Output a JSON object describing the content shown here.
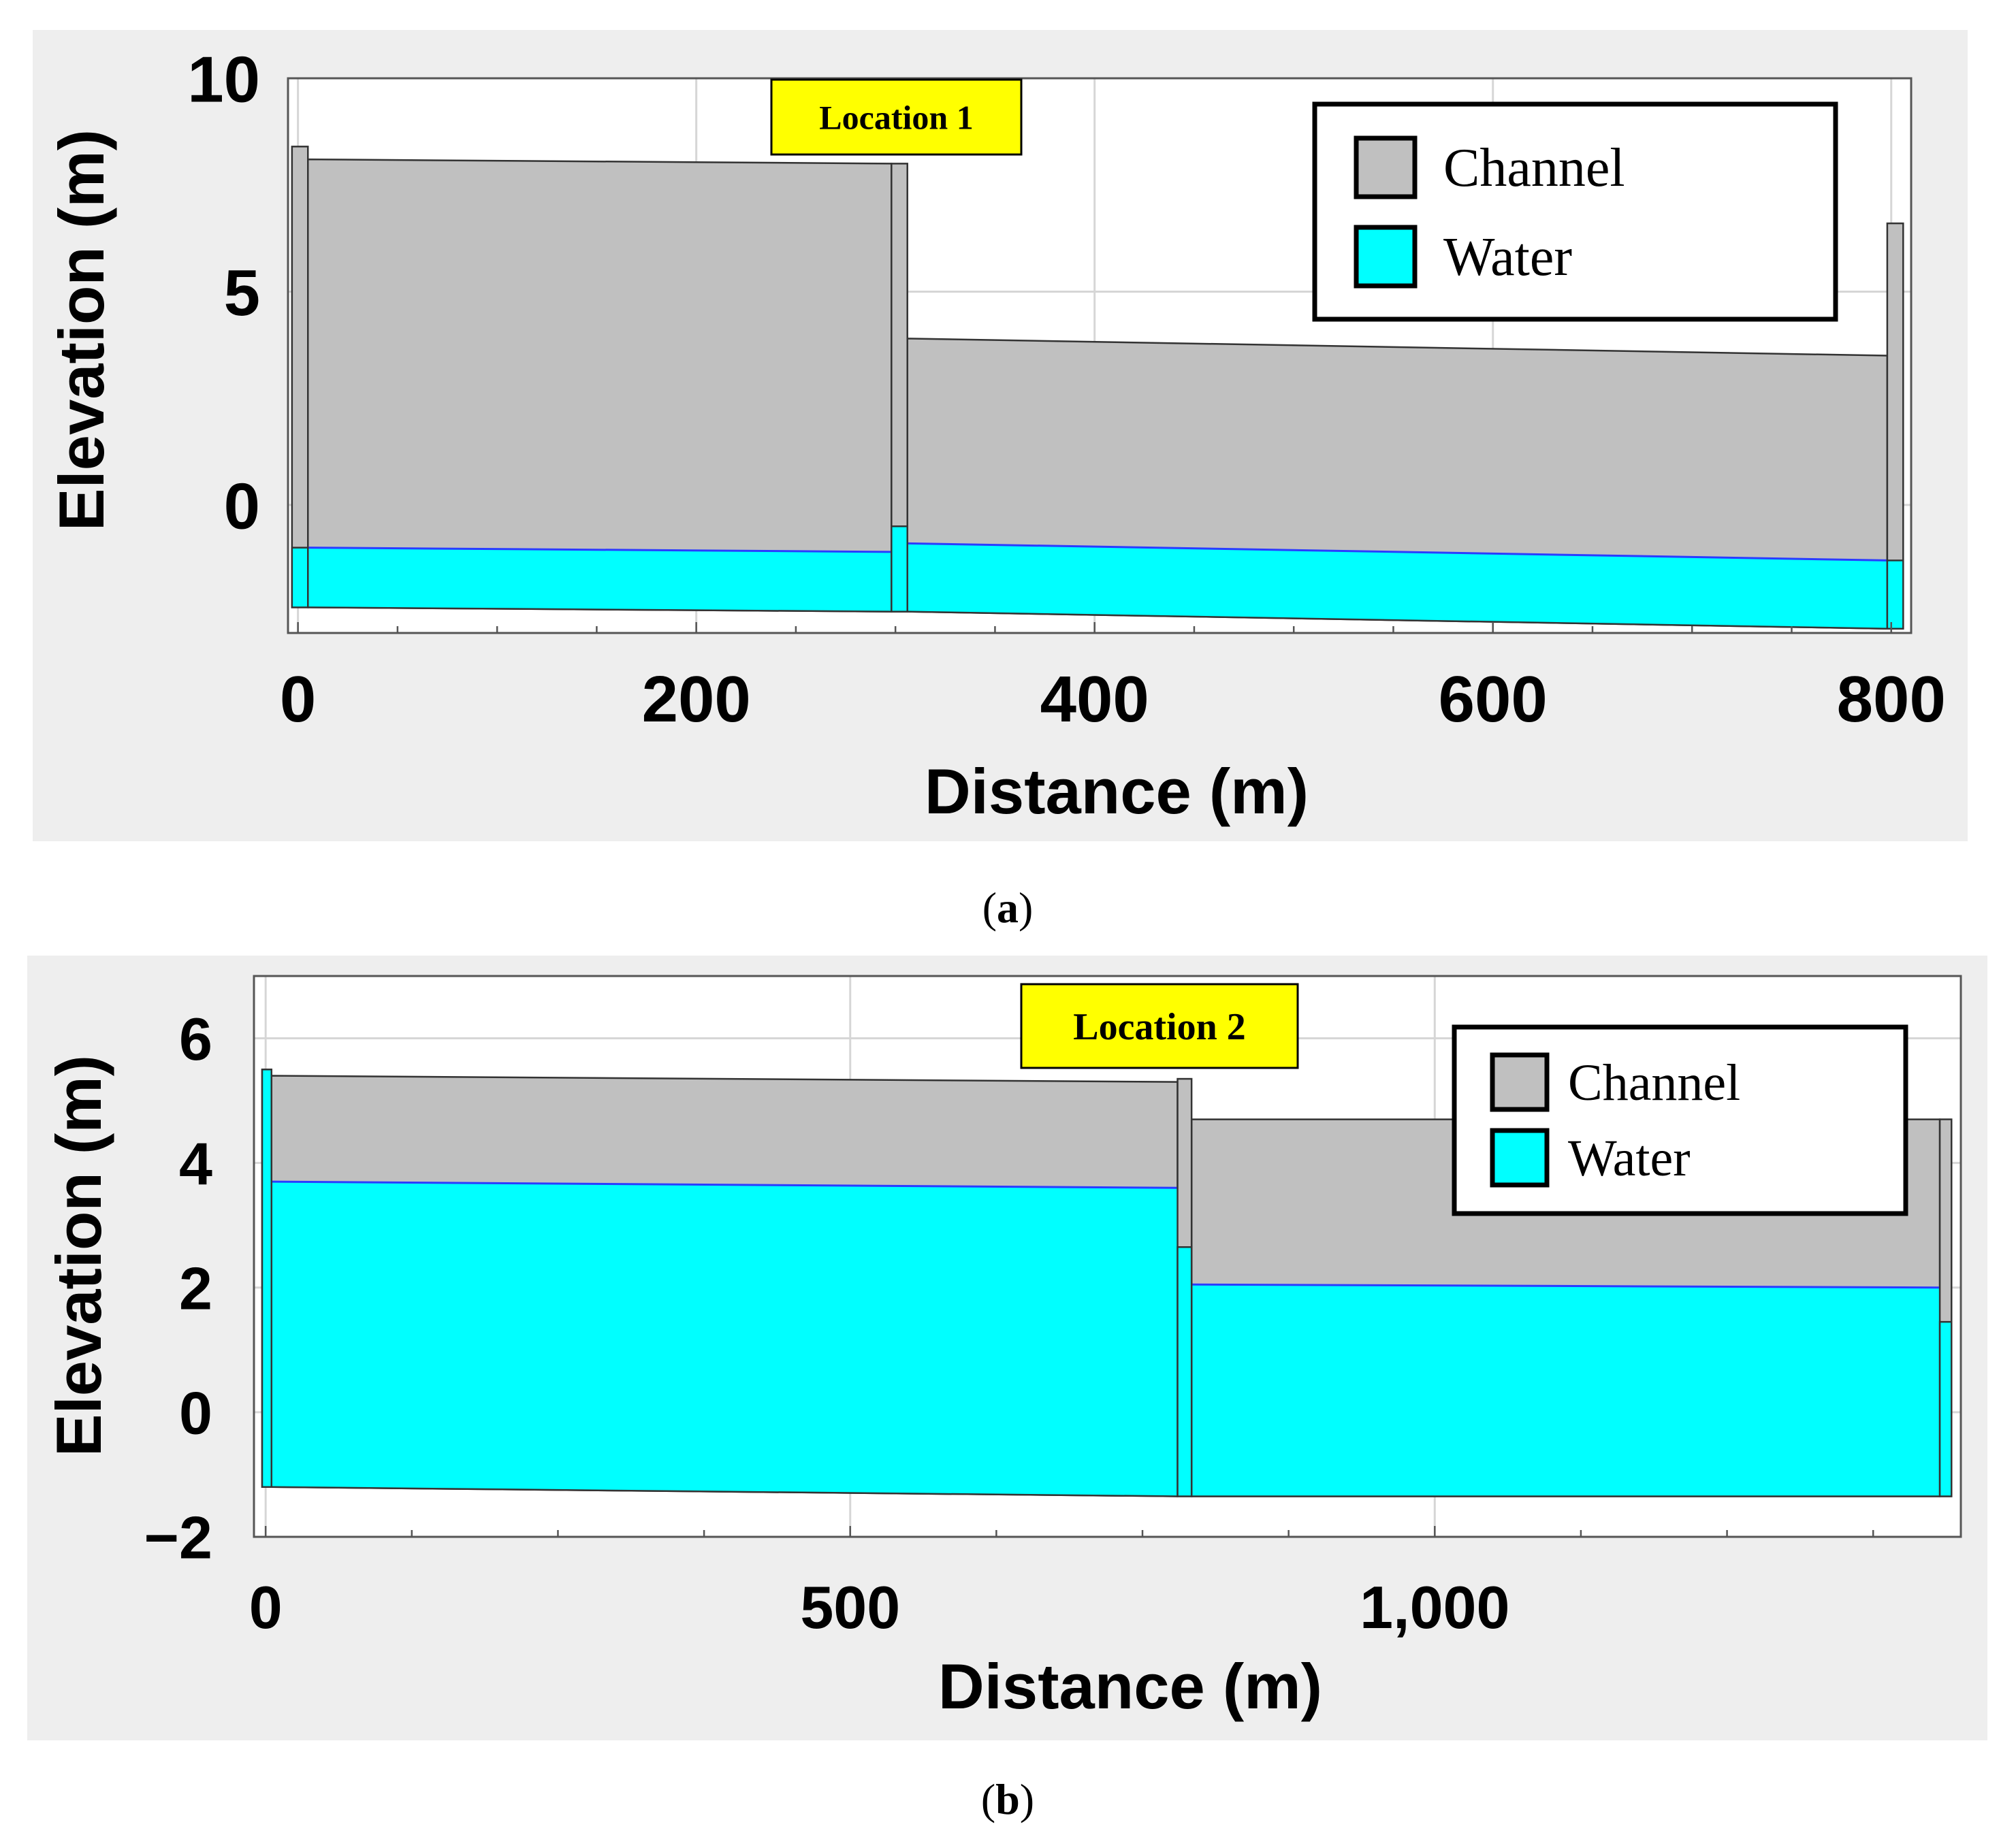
{
  "chart_data": [
    {
      "panel_id": "a",
      "type": "area",
      "panel_label": "a",
      "annotation": "Location 1",
      "xlabel": "Distance (m)",
      "ylabel": "Elevation (m)",
      "xlim": [
        -5,
        810
      ],
      "ylim": [
        -3,
        10
      ],
      "x_ticks": [
        0,
        200,
        400,
        600,
        800
      ],
      "x_tick_labels": [
        "0",
        "200",
        "400",
        "600",
        "800"
      ],
      "x_minor_step": 50,
      "y_ticks": [
        0,
        5,
        10
      ],
      "y_tick_labels": [
        "0",
        "5",
        "10"
      ],
      "grid": true,
      "legend_position": "top-right",
      "colors": {
        "channel": "#c0c0c0",
        "water": "#00ffff",
        "water_edge": "#2a3cff",
        "outline": "#333333",
        "annotation_bg": "#ffff00",
        "panel_bg": "#eeeeee",
        "plot_bg": "#ffffff"
      },
      "legend": [
        {
          "label": "Channel",
          "color": "#c0c0c0"
        },
        {
          "label": "Water",
          "color": "#00ffff"
        }
      ],
      "series": [
        {
          "name": "Channel",
          "segments": [
            {
              "x": [
                5,
                298
              ],
              "top": [
                8.1,
                8.0
              ],
              "bottom": [
                -2.4,
                -2.5
              ]
            },
            {
              "x": [
                306,
                798
              ],
              "top": [
                3.9,
                3.5
              ],
              "bottom": [
                -2.5,
                -2.9
              ]
            }
          ]
        },
        {
          "name": "Water",
          "segments": [
            {
              "x": [
                5,
                298
              ],
              "top": [
                -1.0,
                -1.1
              ],
              "bottom": [
                -2.4,
                -2.5
              ]
            },
            {
              "x": [
                306,
                798
              ],
              "top": [
                -0.9,
                -1.3
              ],
              "bottom": [
                -2.5,
                -2.9
              ]
            }
          ]
        }
      ],
      "nodes": [
        {
          "x": [
            -3,
            5
          ],
          "top": 8.4,
          "water": -1.0,
          "bottom": -2.4
        },
        {
          "x": [
            298,
            306
          ],
          "top": 8.0,
          "water": -0.5,
          "bottom": -2.5
        },
        {
          "x": [
            798,
            806
          ],
          "top": 6.6,
          "water": -1.3,
          "bottom": -2.9
        }
      ]
    },
    {
      "panel_id": "b",
      "type": "area",
      "panel_label": "b",
      "annotation": "Location 2",
      "xlabel": "Distance (m)",
      "ylabel": "Elevation (m)",
      "xlim": [
        -10,
        1450
      ],
      "ylim": [
        -2,
        7
      ],
      "x_ticks": [
        0,
        500,
        1000
      ],
      "x_tick_labels": [
        "0",
        "500",
        "1,000"
      ],
      "x_minor_step": 125,
      "y_ticks": [
        -2,
        0,
        2,
        4,
        6
      ],
      "y_tick_labels": [
        "−2",
        "0",
        "2",
        "4",
        "6"
      ],
      "grid": true,
      "legend_position": "top-right",
      "colors": {
        "channel": "#c0c0c0",
        "water": "#00ffff",
        "water_edge": "#2a3cff",
        "outline": "#333333",
        "annotation_bg": "#ffff00",
        "panel_bg": "#eeeeee",
        "plot_bg": "#ffffff"
      },
      "legend": [
        {
          "label": "Channel",
          "color": "#c0c0c0"
        },
        {
          "label": "Water",
          "color": "#00ffff"
        }
      ],
      "series": [
        {
          "name": "Channel",
          "segments": [
            {
              "x": [
                5,
                780
              ],
              "top": [
                5.4,
                5.3
              ],
              "bottom": [
                -1.2,
                -1.35
              ]
            },
            {
              "x": [
                792,
                1432
              ],
              "top": [
                4.7,
                4.7
              ],
              "bottom": [
                -1.35,
                -1.35
              ]
            }
          ]
        },
        {
          "name": "Water",
          "segments": [
            {
              "x": [
                5,
                780
              ],
              "top": [
                3.7,
                3.6
              ],
              "bottom": [
                -1.2,
                -1.35
              ]
            },
            {
              "x": [
                792,
                1432
              ],
              "top": [
                2.05,
                2.0
              ],
              "bottom": [
                -1.35,
                -1.35
              ]
            }
          ]
        }
      ],
      "nodes": [
        {
          "x": [
            -3,
            5
          ],
          "top": 5.5,
          "water": 5.5,
          "bottom": -1.2
        },
        {
          "x": [
            780,
            792
          ],
          "top": 5.35,
          "water": 2.65,
          "bottom": -1.35
        },
        {
          "x": [
            1432,
            1442
          ],
          "top": 4.7,
          "water": 1.45,
          "bottom": -1.35
        }
      ]
    }
  ]
}
